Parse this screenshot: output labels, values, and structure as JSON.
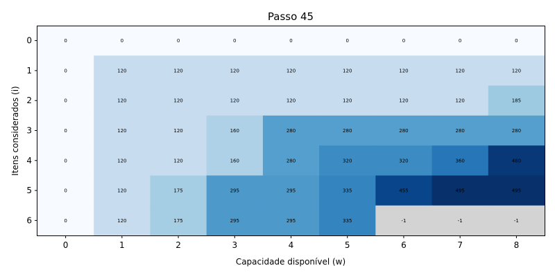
{
  "chart_data": {
    "type": "heatmap",
    "title": "Passo 45",
    "xlabel": "Capacidade disponível (w)",
    "ylabel": "Itens considerados (i)",
    "x_ticks": [
      "0",
      "1",
      "2",
      "3",
      "4",
      "5",
      "6",
      "7",
      "8"
    ],
    "y_ticks": [
      "0",
      "1",
      "2",
      "3",
      "4",
      "5",
      "6"
    ],
    "colormap": "Blues",
    "masked_value": -1,
    "masked_color": "#d3d3d3",
    "values": [
      [
        0,
        0,
        0,
        0,
        0,
        0,
        0,
        0,
        0
      ],
      [
        0,
        120,
        120,
        120,
        120,
        120,
        120,
        120,
        120
      ],
      [
        0,
        120,
        120,
        120,
        120,
        120,
        120,
        120,
        185
      ],
      [
        0,
        120,
        120,
        160,
        280,
        280,
        280,
        280,
        280
      ],
      [
        0,
        120,
        120,
        160,
        280,
        320,
        320,
        360,
        480
      ],
      [
        0,
        120,
        175,
        295,
        295,
        335,
        455,
        495,
        495
      ],
      [
        0,
        120,
        175,
        295,
        295,
        335,
        -1,
        -1,
        -1
      ]
    ]
  }
}
